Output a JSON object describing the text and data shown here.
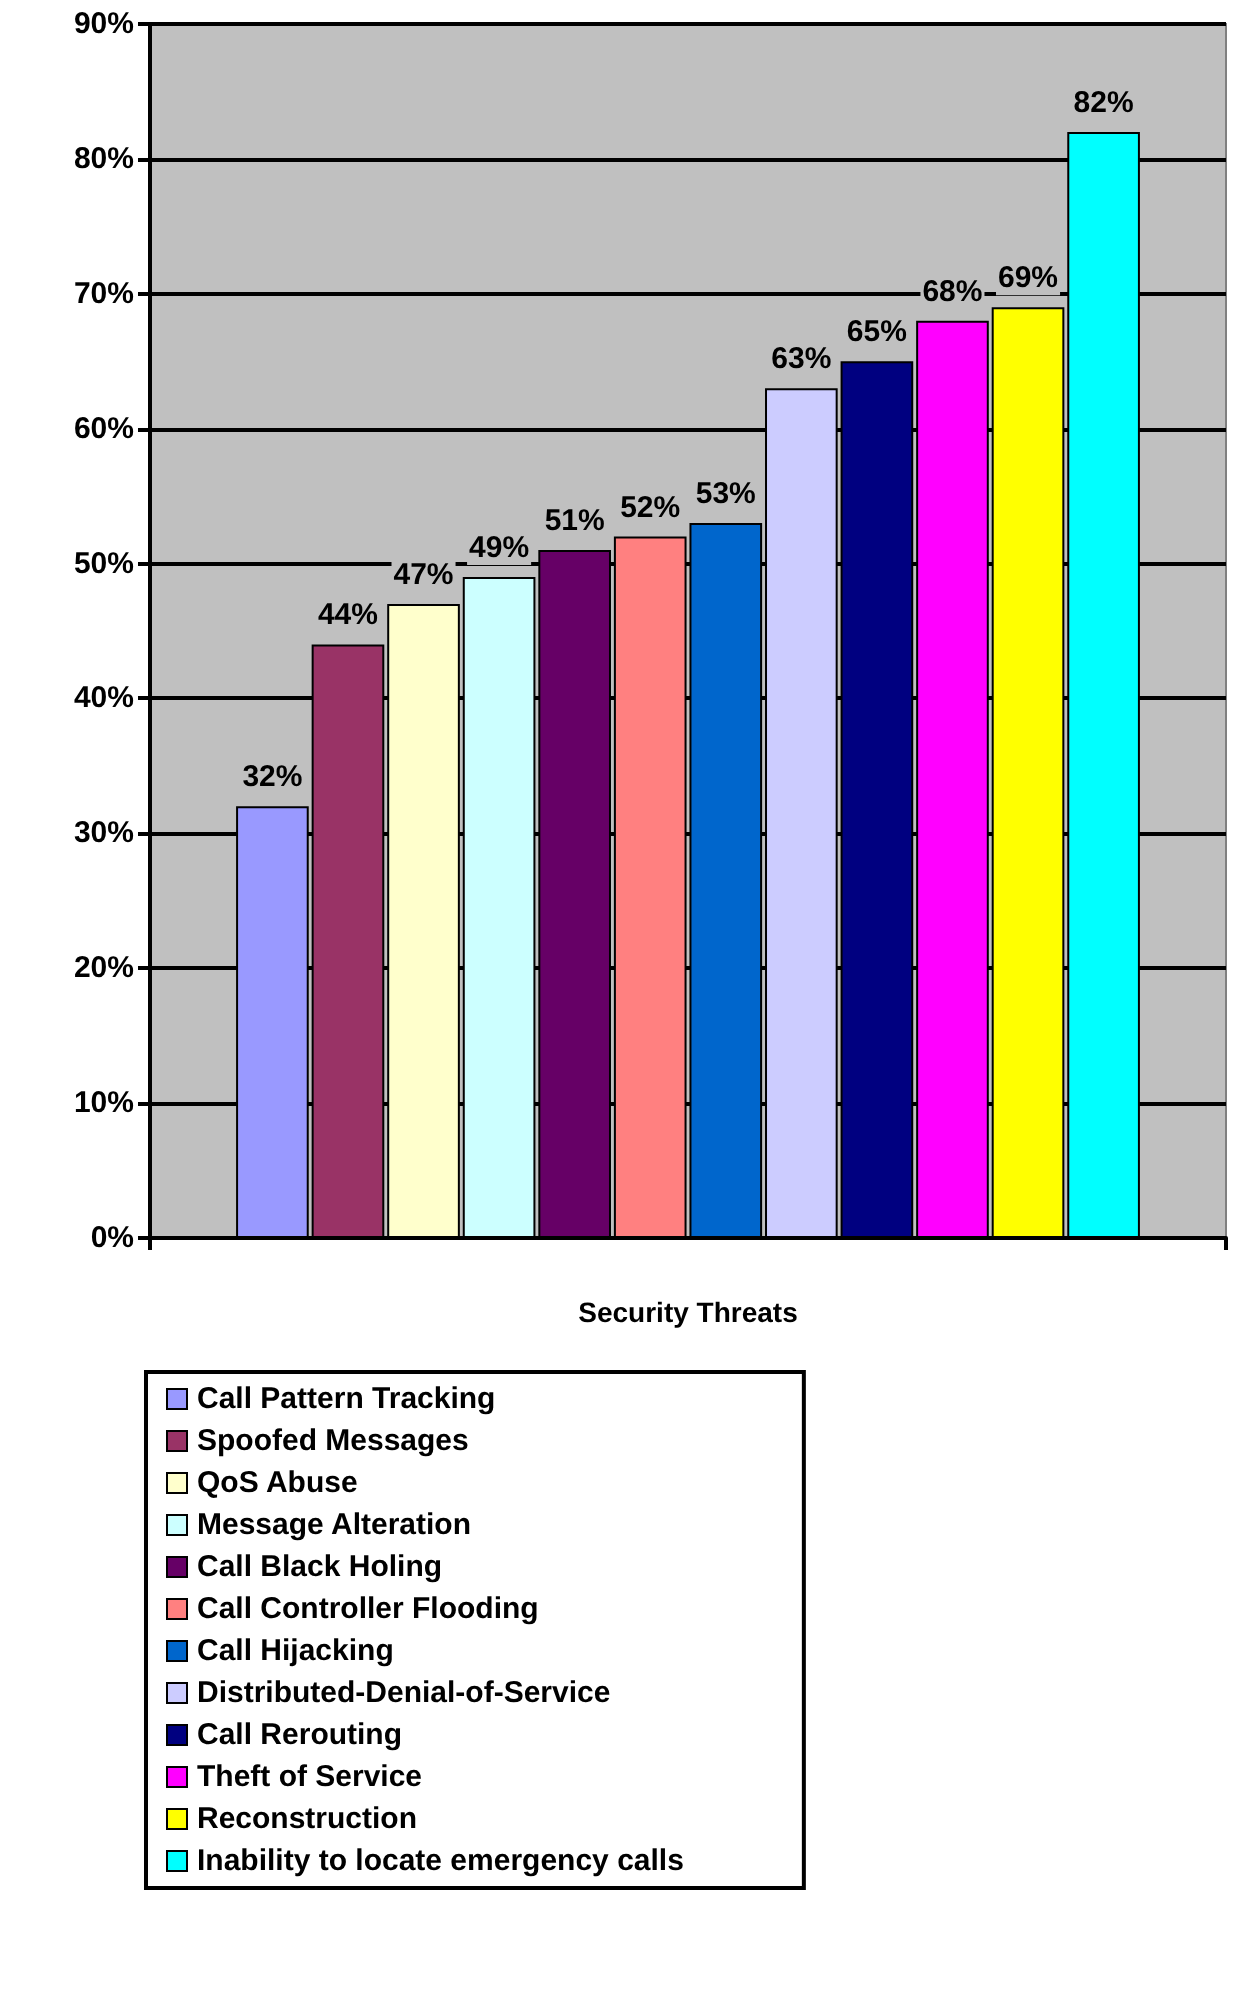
{
  "chart_data": {
    "type": "bar",
    "xlabel": "Security Threats",
    "categories": [
      null
    ],
    "ylim": [
      0,
      90
    ],
    "yticks": [
      {
        "value": 0,
        "label": "0%"
      },
      {
        "value": 10,
        "label": "10%"
      },
      {
        "value": 20,
        "label": "20%"
      },
      {
        "value": 30,
        "label": "30%"
      },
      {
        "value": 40,
        "label": "40%"
      },
      {
        "value": 50,
        "label": "50%"
      },
      {
        "value": 60,
        "label": "60%"
      },
      {
        "value": 70,
        "label": "70%"
      },
      {
        "value": 80,
        "label": "80%"
      },
      {
        "value": 90,
        "label": "90%"
      }
    ],
    "grid": "y",
    "legend": "bottom",
    "series": [
      {
        "name": "Call Pattern Tracking",
        "color": "#9999ff",
        "values": [
          32
        ],
        "value_labels": [
          "32%"
        ]
      },
      {
        "name": "Spoofed Messages",
        "color": "#993366",
        "values": [
          44
        ],
        "value_labels": [
          "44%"
        ]
      },
      {
        "name": "QoS Abuse",
        "color": "#ffffcc",
        "values": [
          47
        ],
        "value_labels": [
          "47%"
        ]
      },
      {
        "name": "Message Alteration",
        "color": "#ccffff",
        "values": [
          49
        ],
        "value_labels": [
          "49%"
        ]
      },
      {
        "name": "Call Black Holing",
        "color": "#660066",
        "values": [
          51
        ],
        "value_labels": [
          "51%"
        ]
      },
      {
        "name": "Call Controller Flooding",
        "color": "#ff8080",
        "values": [
          52
        ],
        "value_labels": [
          "52%"
        ]
      },
      {
        "name": "Call Hijacking",
        "color": "#0066cc",
        "values": [
          53
        ],
        "value_labels": [
          "53%"
        ]
      },
      {
        "name": "Distributed-Denial-of-Service",
        "color": "#ccccff",
        "values": [
          63
        ],
        "value_labels": [
          "63%"
        ]
      },
      {
        "name": "Call Rerouting",
        "color": "#000080",
        "values": [
          65
        ],
        "value_labels": [
          "65%"
        ]
      },
      {
        "name": "Theft of Service",
        "color": "#ff00ff",
        "values": [
          68
        ],
        "value_labels": [
          "68%"
        ]
      },
      {
        "name": "Reconstruction",
        "color": "#ffff00",
        "values": [
          69
        ],
        "value_labels": [
          "69%"
        ]
      },
      {
        "name": "Inability to locate emergency calls",
        "color": "#00ffff",
        "values": [
          82
        ],
        "value_labels": [
          "82%"
        ]
      }
    ]
  }
}
